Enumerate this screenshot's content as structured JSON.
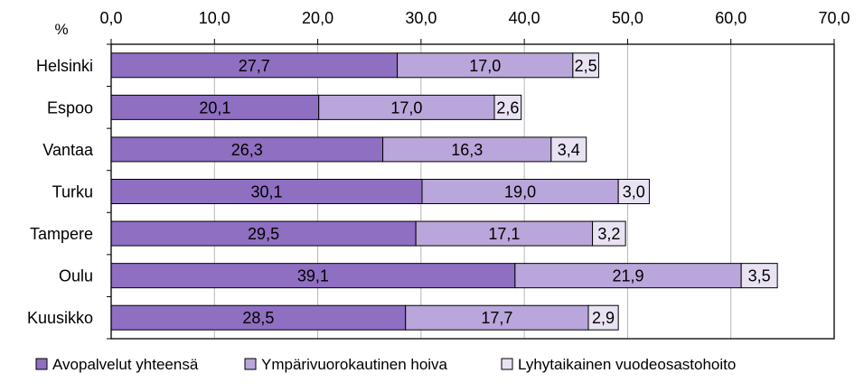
{
  "chart_data": {
    "type": "bar",
    "orientation": "horizontal",
    "stacked": true,
    "unit_label": "%",
    "categories": [
      "Helsinki",
      "Espoo",
      "Vantaa",
      "Turku",
      "Tampere",
      "Oulu",
      "Kuusikko"
    ],
    "series": [
      {
        "name": "Avopalvelut yhteensä",
        "color": "#8e6fc1",
        "values": [
          27.7,
          20.1,
          26.3,
          30.1,
          29.5,
          39.1,
          28.5
        ],
        "labels": [
          "27,7",
          "20,1",
          "26,3",
          "30,1",
          "29,5",
          "39,1",
          "28,5"
        ]
      },
      {
        "name": "Ympärivuorokautinen hoiva",
        "color": "#b9a6da",
        "values": [
          17.0,
          17.0,
          16.3,
          19.0,
          17.1,
          21.9,
          17.7
        ],
        "labels": [
          "17,0",
          "17,0",
          "16,3",
          "19,0",
          "17,1",
          "21,9",
          "17,7"
        ]
      },
      {
        "name": "Lyhytaikainen vuodeosastohoito",
        "color": "#e8e2f3",
        "values": [
          2.5,
          2.6,
          3.4,
          3.0,
          3.2,
          3.5,
          2.9
        ],
        "labels": [
          "2,5",
          "2,6",
          "3,4",
          "3,0",
          "3,2",
          "3,5",
          "2,9"
        ]
      }
    ],
    "xlim": [
      0,
      70
    ],
    "ticks": [
      0,
      10,
      20,
      30,
      40,
      50,
      60,
      70
    ],
    "tick_labels": [
      "0,0",
      "10,0",
      "20,0",
      "30,0",
      "40,0",
      "50,0",
      "60,0",
      "70,0"
    ],
    "axis_position": "top",
    "grid": true,
    "legend_position": "bottom"
  }
}
